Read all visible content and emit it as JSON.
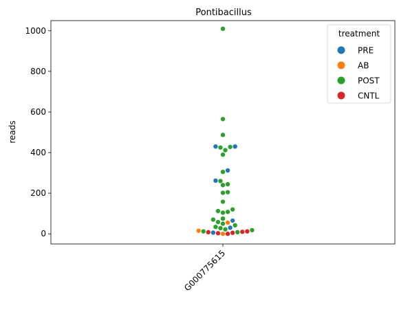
{
  "chart_data": {
    "type": "scatter",
    "title": "Pontibacillus",
    "xlabel": "",
    "ylabel": "reads",
    "categories": [
      "G000775615"
    ],
    "ylim": [
      -50,
      1050
    ],
    "yticks": [
      0,
      200,
      400,
      600,
      800,
      1000
    ],
    "legend": {
      "title": "treatment",
      "placement": "top-right",
      "entries": [
        {
          "name": "PRE",
          "color": "#1f77b4"
        },
        {
          "name": "AB",
          "color": "#ff7f0e"
        },
        {
          "name": "POST",
          "color": "#2ca02c"
        },
        {
          "name": "CNTL",
          "color": "#d62728"
        }
      ]
    },
    "series": [
      {
        "name": "PRE",
        "color": "#1f77b4",
        "values": [
          430,
          430,
          312,
          262,
          65,
          30,
          6
        ]
      },
      {
        "name": "AB",
        "color": "#ff7f0e",
        "values": [
          15,
          55,
          0
        ]
      },
      {
        "name": "POST",
        "color": "#2ca02c",
        "values": [
          1010,
          565,
          487,
          428,
          425,
          412,
          390,
          305,
          260,
          244,
          240,
          205,
          202,
          158,
          120,
          112,
          108,
          104,
          75,
          70,
          58,
          50,
          42,
          34,
          28,
          22,
          18,
          12,
          8
        ]
      },
      {
        "name": "CNTL",
        "color": "#d62728",
        "values": [
          8,
          5,
          0,
          3,
          12,
          10
        ]
      }
    ]
  }
}
